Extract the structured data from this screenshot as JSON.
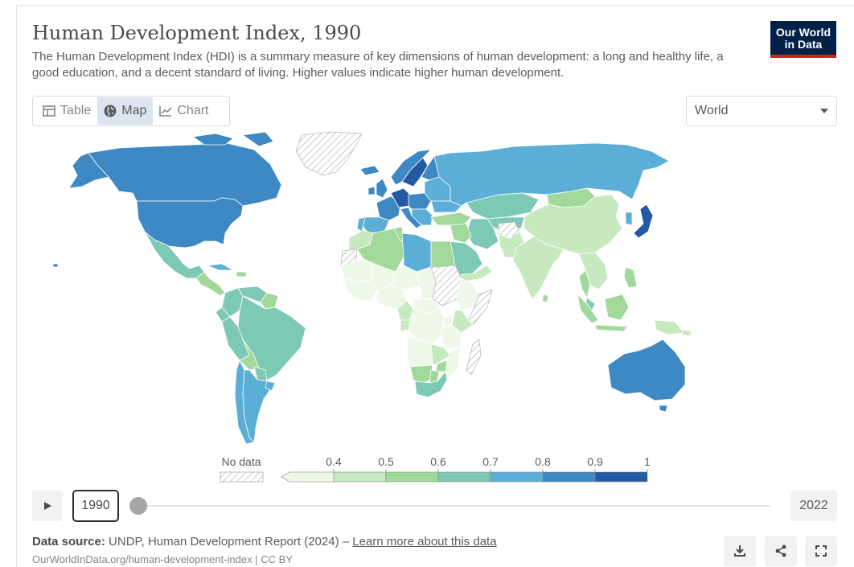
{
  "header": {
    "title": "Human Development Index, 1990",
    "subtitle": "The Human Development Index (HDI) is a summary measure of key dimensions of human development: a long and healthy life, a good education, and a decent standard of living. Higher values indicate higher human development.",
    "logo_line1": "Our World",
    "logo_line2": "in Data"
  },
  "tabs": [
    {
      "label": "Table",
      "icon": "table-icon",
      "active": false
    },
    {
      "label": "Map",
      "icon": "globe-icon",
      "active": true
    },
    {
      "label": "Chart",
      "icon": "line-chart-icon",
      "active": false
    }
  ],
  "region_select": {
    "value": "World"
  },
  "legend": {
    "no_data_label": "No data",
    "ticks": [
      "0.4",
      "0.5",
      "0.6",
      "0.7",
      "0.8",
      "0.9",
      "1"
    ],
    "bins": [
      {
        "from": 0.4,
        "to": 0.5,
        "color": "#c7e9c0"
      },
      {
        "from": 0.5,
        "to": 0.6,
        "color": "#a1d99b"
      },
      {
        "from": 0.6,
        "to": 0.7,
        "color": "#7ec9b5"
      },
      {
        "from": 0.7,
        "to": 0.8,
        "color": "#5bafd6"
      },
      {
        "from": 0.8,
        "to": 0.9,
        "color": "#3e89c3"
      },
      {
        "from": 0.9,
        "to": 1.0,
        "color": "#235aa3"
      }
    ],
    "below_color": "#eef8e8"
  },
  "timeline": {
    "current_year": "1990",
    "end_year": "2022",
    "progress": 0.0
  },
  "footer": {
    "source_label": "Data source:",
    "source_text": "UNDP, Human Development Report (2024) –",
    "learn_more": "Learn more about this data",
    "url": "OurWorldInData.org/human-development-index | CC BY"
  },
  "colors": {
    "brand_navy": "#002147",
    "brand_red": "#ce261e",
    "no_data_hatch": "#c8c8c8"
  },
  "actions": [
    "download-icon",
    "share-icon",
    "fullscreen-icon"
  ]
}
